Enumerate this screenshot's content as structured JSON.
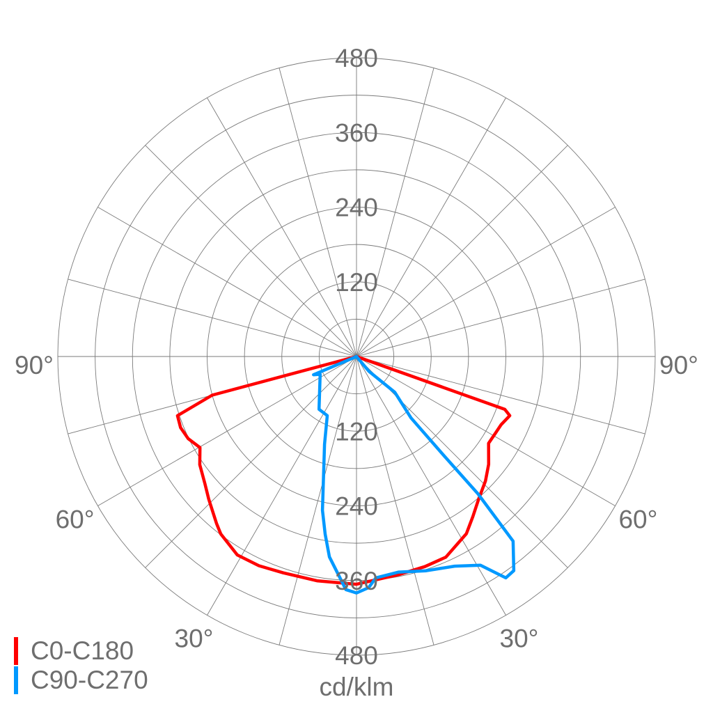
{
  "chart_data": {
    "type": "polar",
    "unit_label": "cd/klm",
    "radial_max": 480,
    "radial_ring_step": 60,
    "radial_tick_labels": [
      "120",
      "240",
      "360",
      "480"
    ],
    "angle_grid_step_deg": 15,
    "angle_labels": {
      "left": [
        "90°",
        "60°",
        "30°"
      ],
      "right": [
        "90°",
        "60°",
        "30°"
      ]
    },
    "angle_label_values": [
      90,
      60,
      30
    ],
    "grid": true,
    "legend_position": "bottom-left",
    "series": [
      {
        "name": "C0-C180",
        "color": "#ff0000",
        "points_gamma_intensity": [
          [
            -90,
            0
          ],
          [
            -75,
            240
          ],
          [
            -71.7,
            303
          ],
          [
            -68,
            305
          ],
          [
            -64,
            301
          ],
          [
            -59.8,
            291
          ],
          [
            -55.4,
            306
          ],
          [
            -50,
            318
          ],
          [
            -46,
            330
          ],
          [
            -40,
            350
          ],
          [
            -37.4,
            359
          ],
          [
            -31,
            372
          ],
          [
            -25,
            371
          ],
          [
            -18.7,
            367
          ],
          [
            -10,
            366
          ],
          [
            0,
            366
          ],
          [
            11,
            357
          ],
          [
            18,
            355
          ],
          [
            24,
            353
          ],
          [
            31.8,
            335
          ],
          [
            36,
            318
          ],
          [
            40.5,
            302
          ],
          [
            46,
            288
          ],
          [
            50.8,
            274
          ],
          [
            56.7,
            254
          ],
          [
            61,
            255
          ],
          [
            64.8,
            257
          ],
          [
            68.9,
            264
          ],
          [
            70.4,
            253
          ],
          [
            90,
            0
          ]
        ]
      },
      {
        "name": "C90-C270",
        "color": "#0099ff",
        "points_gamma_intensity": [
          [
            -90,
            0
          ],
          [
            -67,
            75
          ],
          [
            -64,
            65
          ],
          [
            -35.4,
            104
          ],
          [
            -26.3,
            106
          ],
          [
            -20,
            150
          ],
          [
            -12.5,
            253
          ],
          [
            -10,
            290
          ],
          [
            -7.7,
            325
          ],
          [
            -2.6,
            375
          ],
          [
            0,
            380
          ],
          [
            3,
            372
          ],
          [
            5,
            357
          ],
          [
            11.1,
            353
          ],
          [
            18,
            362
          ],
          [
            25.1,
            372
          ],
          [
            30.7,
            390
          ],
          [
            34,
            429
          ],
          [
            36.3,
            427
          ],
          [
            40.3,
            389
          ],
          [
            41.5,
            295
          ],
          [
            41.4,
            216
          ],
          [
            41.6,
            132
          ],
          [
            47,
            84
          ],
          [
            40,
            31
          ],
          [
            0,
            0
          ]
        ]
      }
    ]
  }
}
